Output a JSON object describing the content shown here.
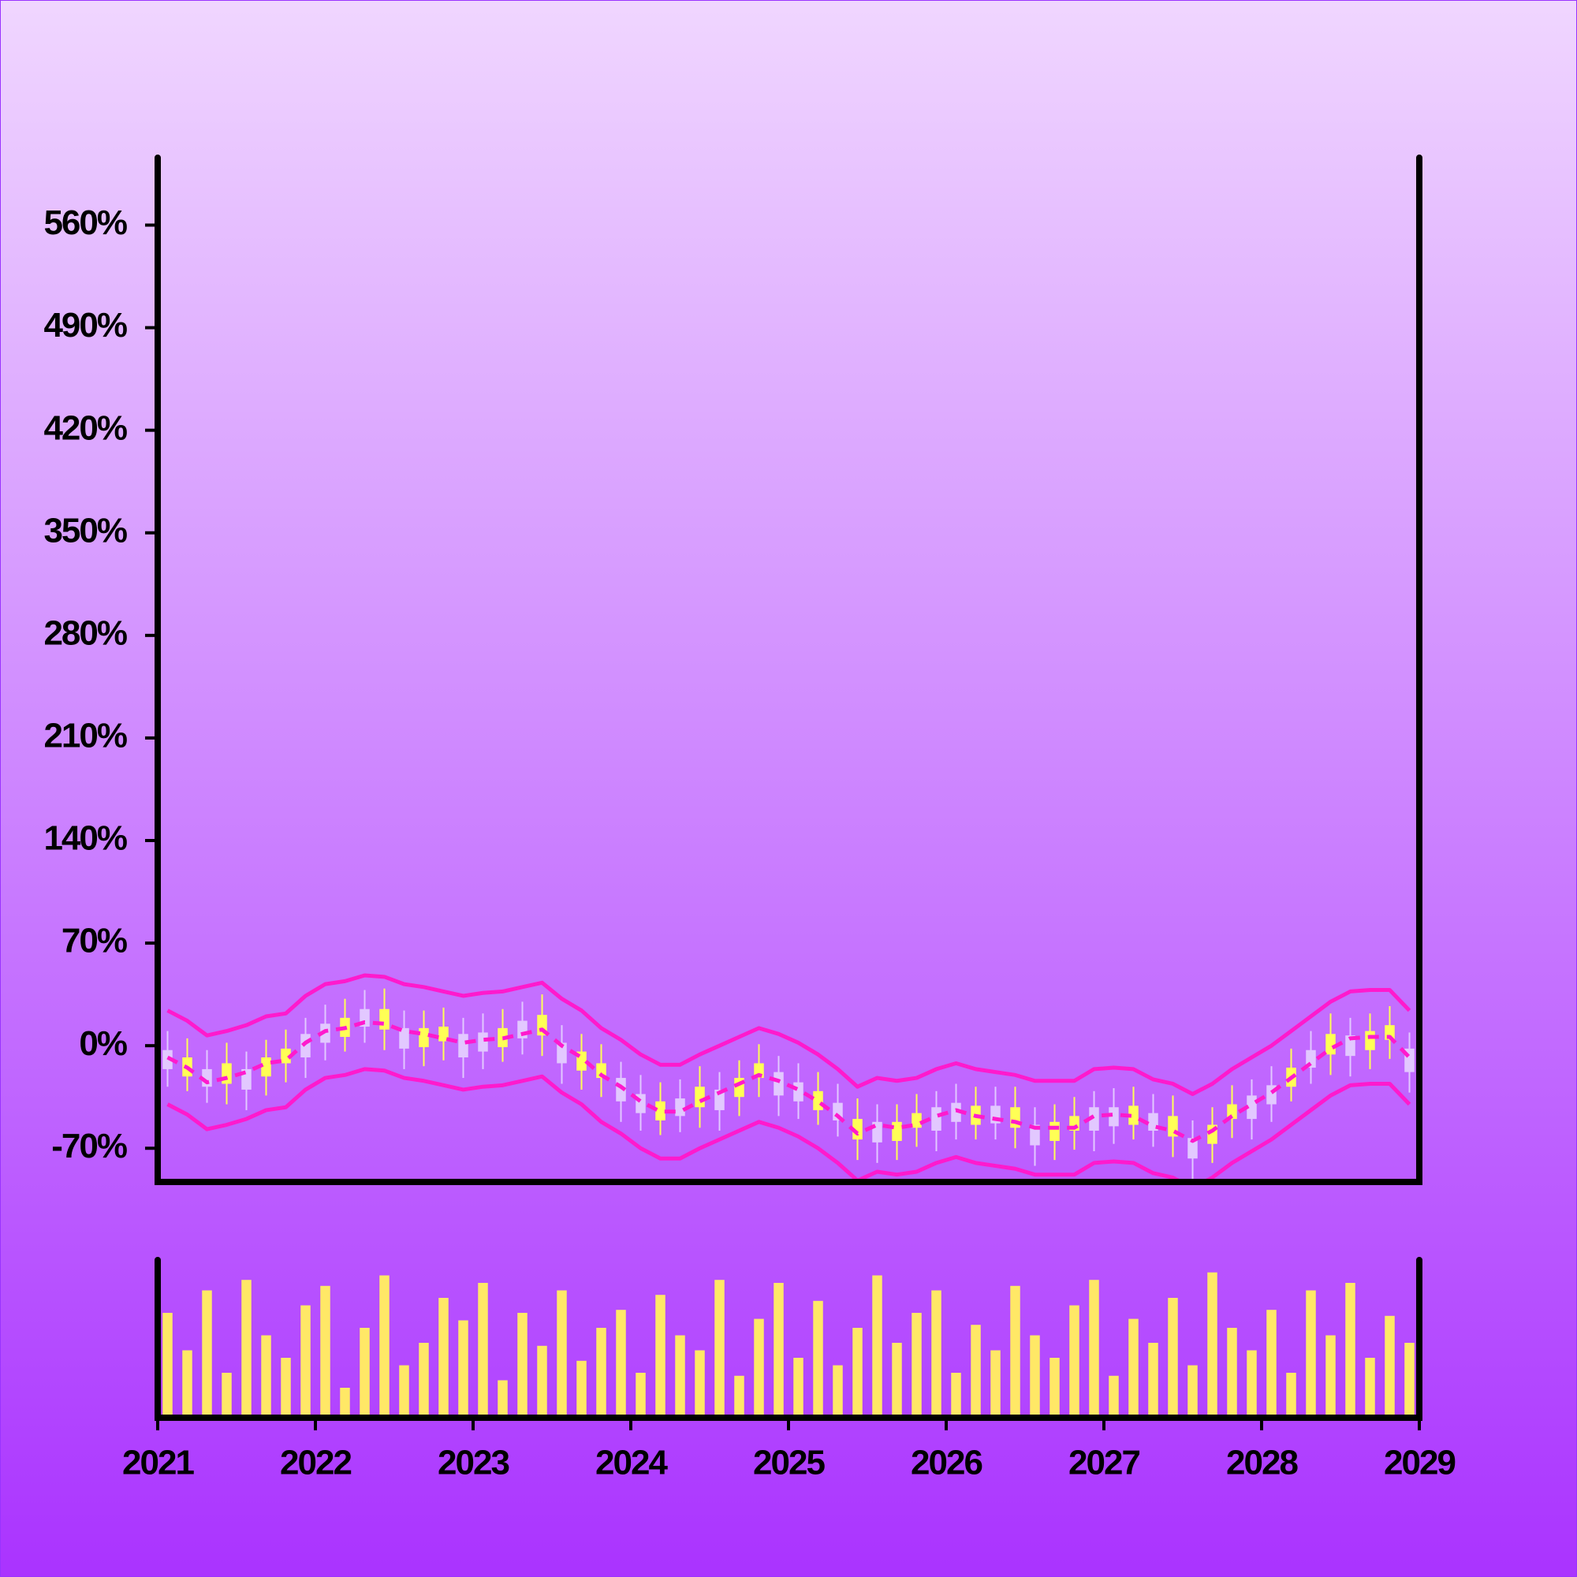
{
  "chart_data": {
    "type": "candlestick",
    "x": [
      2021.0625,
      2021.1875,
      2021.3125,
      2021.4375,
      2021.5625,
      2021.6875,
      2021.8125,
      2021.9375,
      2022.0625,
      2022.1875,
      2022.3125,
      2022.4375,
      2022.5625,
      2022.6875,
      2022.8125,
      2022.9375,
      2023.0625,
      2023.1875,
      2023.3125,
      2023.4375,
      2023.5625,
      2023.6875,
      2023.8125,
      2023.9375,
      2024.0625,
      2024.1875,
      2024.3125,
      2024.4375,
      2024.5625,
      2024.6875,
      2024.8125,
      2024.9375,
      2025.0625,
      2025.1875,
      2025.3125,
      2025.4375,
      2025.5625,
      2025.6875,
      2025.8125,
      2025.9375,
      2026.0625,
      2026.1875,
      2026.3125,
      2026.4375,
      2026.5625,
      2026.6875,
      2026.8125,
      2026.9375,
      2027.0625,
      2027.1875,
      2027.3125,
      2027.4375,
      2027.5625,
      2027.6875,
      2027.8125,
      2027.9375,
      2028.0625,
      2028.1875,
      2028.3125,
      2028.4375,
      2028.5625,
      2028.6875,
      2028.8125,
      2028.9375
    ],
    "open": [
      -3,
      -21,
      -16,
      -26,
      -16,
      -21,
      -12,
      8,
      15,
      6,
      25,
      11,
      12,
      -1,
      3,
      8,
      9,
      -1,
      17,
      7,
      2,
      -17,
      -22,
      -22,
      -33,
      -51,
      -36,
      -42,
      -30,
      -35,
      -22,
      -18,
      -25,
      -44,
      -39,
      -64,
      -52,
      -65,
      -56,
      -42,
      -39,
      -54,
      -41,
      -56,
      -54,
      -65,
      -58,
      -42,
      -42,
      -54,
      -46,
      -62,
      -63,
      -67,
      -50,
      -34,
      -27,
      -28,
      -3,
      -6,
      7,
      -3,
      4,
      -2
    ],
    "high": [
      10,
      5,
      -3,
      2,
      -4,
      4,
      11,
      19,
      28,
      32,
      38,
      39,
      24,
      24,
      26,
      19,
      22,
      25,
      30,
      35,
      14,
      8,
      1,
      -11,
      -20,
      -25,
      -23,
      -14,
      -18,
      -10,
      1,
      -7,
      -12,
      -18,
      -26,
      -36,
      -40,
      -40,
      -33,
      -31,
      -26,
      -28,
      -28,
      -28,
      -42,
      -40,
      -35,
      -31,
      -29,
      -28,
      -33,
      -34,
      -51,
      -42,
      -27,
      -23,
      -14,
      -2,
      10,
      22,
      19,
      22,
      27,
      9
    ],
    "low": [
      -28,
      -31,
      -39,
      -40,
      -44,
      -34,
      -25,
      -22,
      -10,
      -4,
      2,
      -3,
      -16,
      -14,
      -10,
      -22,
      -16,
      -11,
      -6,
      -7,
      -26,
      -30,
      -35,
      -52,
      -58,
      -61,
      -59,
      -56,
      -58,
      -48,
      -35,
      -48,
      -50,
      -54,
      -62,
      -78,
      -80,
      -78,
      -69,
      -72,
      -64,
      -64,
      -64,
      -70,
      -82,
      -78,
      -71,
      -72,
      -67,
      -64,
      -69,
      -76,
      -91,
      -80,
      -63,
      -64,
      -52,
      -38,
      -26,
      -20,
      -21,
      -16,
      -9,
      -32
    ],
    "close": [
      -16,
      -8,
      -28,
      -12,
      -30,
      -8,
      -2,
      -8,
      2,
      19,
      13,
      25,
      -2,
      12,
      13,
      -8,
      -4,
      12,
      5,
      21,
      -12,
      -4,
      -12,
      -38,
      -46,
      -38,
      -48,
      -28,
      -44,
      -22,
      -12,
      -34,
      -38,
      -31,
      -51,
      -50,
      -66,
      -52,
      -46,
      -58,
      -52,
      -41,
      -53,
      -42,
      -68,
      -52,
      -48,
      -58,
      -55,
      -41,
      -58,
      -48,
      -77,
      -54,
      -40,
      -50,
      -40,
      -15,
      -15,
      8,
      -7,
      10,
      14,
      -18
    ],
    "volume": [
      70,
      45,
      85,
      30,
      92,
      55,
      40,
      75,
      88,
      20,
      60,
      95,
      35,
      50,
      80,
      65,
      90,
      25,
      70,
      48,
      85,
      38,
      60,
      72,
      30,
      82,
      55,
      45,
      92,
      28,
      66,
      90,
      40,
      78,
      35,
      60,
      95,
      50,
      70,
      85,
      30,
      62,
      45,
      88,
      55,
      40,
      75,
      92,
      28,
      66,
      50,
      80,
      35,
      97,
      60,
      45,
      72,
      30,
      85,
      55,
      90,
      40,
      68,
      50
    ],
    "upper_band": [
      24,
      17,
      7,
      10,
      14,
      20,
      22,
      34,
      42,
      44,
      48,
      47,
      42,
      40,
      37,
      34,
      36,
      37,
      40,
      43,
      32,
      24,
      12,
      4,
      -6,
      -13,
      -13,
      -6,
      0,
      6,
      12,
      8,
      2,
      -6,
      -16,
      -28,
      -22,
      -24,
      -22,
      -16,
      -12,
      -16,
      -18,
      -20,
      -24,
      -24,
      -24,
      -16,
      -15,
      -16,
      -23,
      -26,
      -33,
      -26,
      -16,
      -8,
      0,
      10,
      20,
      30,
      37,
      38,
      38,
      24
    ],
    "middle_band": [
      -8,
      -15,
      -25,
      -22,
      -18,
      -12,
      -10,
      2,
      10,
      12,
      16,
      15,
      10,
      8,
      5,
      2,
      4,
      5,
      8,
      11,
      0,
      -8,
      -20,
      -28,
      -38,
      -45,
      -45,
      -38,
      -32,
      -26,
      -20,
      -24,
      -30,
      -38,
      -48,
      -60,
      -54,
      -56,
      -54,
      -48,
      -44,
      -48,
      -50,
      -52,
      -56,
      -56,
      -56,
      -48,
      -47,
      -48,
      -55,
      -58,
      -65,
      -58,
      -48,
      -40,
      -32,
      -22,
      -12,
      -2,
      5,
      6,
      6,
      -8
    ],
    "lower_band": [
      -40,
      -47,
      -57,
      -54,
      -50,
      -44,
      -42,
      -30,
      -22,
      -20,
      -16,
      -17,
      -22,
      -24,
      -27,
      -30,
      -28,
      -27,
      -24,
      -21,
      -32,
      -40,
      -52,
      -60,
      -70,
      -77,
      -77,
      -70,
      -64,
      -58,
      -52,
      -56,
      -62,
      -70,
      -80,
      -92,
      -86,
      -88,
      -86,
      -80,
      -76,
      -80,
      -82,
      -84,
      -88,
      -88,
      -88,
      -80,
      -79,
      -80,
      -87,
      -90,
      -97,
      -90,
      -80,
      -72,
      -64,
      -54,
      -44,
      -34,
      -27,
      -26,
      -26,
      -40
    ],
    "xlim": [
      2021,
      2029
    ],
    "xticks": [
      2021,
      2022,
      2023,
      2024,
      2025,
      2026,
      2027,
      2028,
      2029
    ],
    "ylim": [
      -93,
      606
    ],
    "yticks": [
      {
        "value": -70,
        "label": "-70%"
      },
      {
        "value": 0,
        "label": "0%"
      },
      {
        "value": 70,
        "label": "70%"
      },
      {
        "value": 140,
        "label": "140%"
      },
      {
        "value": 210,
        "label": "210%"
      },
      {
        "value": 280,
        "label": "280%"
      },
      {
        "value": 350,
        "label": "350%"
      },
      {
        "value": 420,
        "label": "420%"
      },
      {
        "value": 490,
        "label": "490%"
      },
      {
        "value": 560,
        "label": "560%"
      }
    ],
    "volume_ylim": [
      0,
      100
    ],
    "up_color": "#ffff55",
    "down_color": "#e2c8ff",
    "band_color": "#ff1acd",
    "volume_color": "#ffe866"
  }
}
